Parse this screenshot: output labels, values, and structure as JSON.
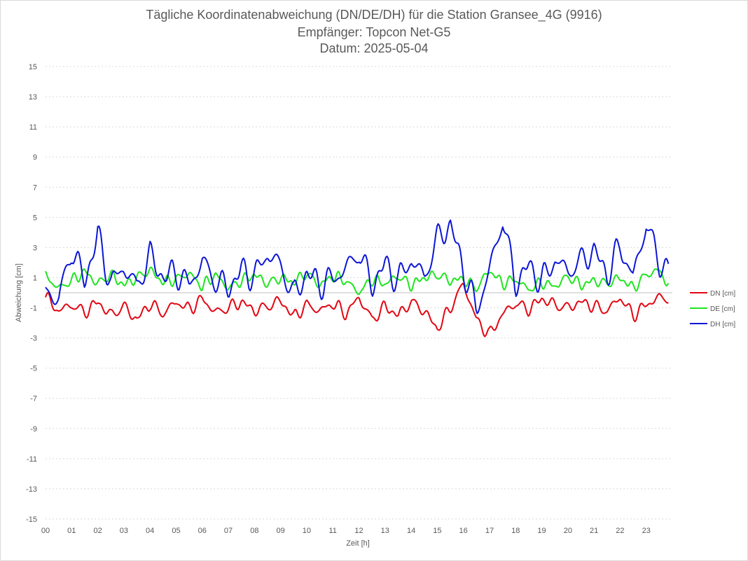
{
  "chart_data": {
    "type": "line",
    "title": "Tägliche Koordinatenabweichung (DN/DE/DH) für die Station Gransee_4G (9916)",
    "subtitle_1": "Empfänger: Topcon Net-G5",
    "subtitle_2": "Datum: 2025-05-04",
    "xlabel": "Zeit [h]",
    "ylabel": "Abweichung [cm]",
    "xlim": [
      0,
      24
    ],
    "ylim": [
      -15,
      15
    ],
    "x_ticks": [
      "00",
      "01",
      "02",
      "03",
      "04",
      "05",
      "06",
      "07",
      "08",
      "09",
      "10",
      "11",
      "12",
      "13",
      "14",
      "15",
      "16",
      "17",
      "18",
      "19",
      "20",
      "21",
      "22",
      "23"
    ],
    "y_ticks": [
      15,
      13,
      11,
      9,
      7,
      5,
      3,
      1,
      -1,
      -3,
      -5,
      -7,
      -9,
      -11,
      -13,
      -15
    ],
    "grid": true,
    "legend_position": "right",
    "x": [
      0.0,
      0.5,
      1.0,
      1.5,
      2.0,
      2.5,
      3.0,
      3.5,
      4.0,
      4.5,
      5.0,
      5.5,
      6.0,
      6.5,
      7.0,
      7.5,
      8.0,
      8.5,
      9.0,
      9.5,
      10.0,
      10.5,
      11.0,
      11.5,
      12.0,
      12.5,
      13.0,
      13.5,
      14.0,
      14.5,
      15.0,
      15.5,
      16.0,
      16.5,
      17.0,
      17.5,
      18.0,
      18.5,
      19.0,
      19.5,
      20.0,
      20.5,
      21.0,
      21.5,
      22.0,
      22.5,
      23.0,
      23.5,
      23.85
    ],
    "series": [
      {
        "name": "DN [cm]",
        "color": "#e30613",
        "values": [
          -0.3,
          -1.2,
          -0.8,
          -1.3,
          -0.6,
          -1.5,
          -0.9,
          -1.8,
          -0.7,
          -1.4,
          -0.6,
          -1.1,
          -0.4,
          -1.3,
          -1.0,
          -0.6,
          -1.2,
          -0.9,
          -0.5,
          -1.6,
          -0.8,
          -1.2,
          -0.7,
          -1.4,
          -0.3,
          -1.8,
          -0.9,
          -1.5,
          -0.6,
          -1.2,
          -2.4,
          -1.0,
          0.6,
          -1.8,
          -2.8,
          -1.4,
          -0.7,
          -1.1,
          -0.4,
          -0.8,
          -1.0,
          -0.6,
          -0.9,
          -1.2,
          -0.3,
          -1.5,
          -0.8,
          -0.3,
          -0.4
        ]
      },
      {
        "name": "DE [cm]",
        "color": "#1ee61e",
        "values": [
          1.1,
          0.3,
          0.8,
          1.4,
          0.6,
          1.2,
          0.5,
          1.0,
          1.5,
          0.7,
          0.9,
          1.3,
          0.4,
          1.2,
          0.3,
          0.8,
          1.2,
          0.6,
          1.0,
          0.7,
          1.3,
          0.5,
          1.1,
          0.8,
          0.0,
          0.9,
          0.6,
          1.1,
          0.5,
          1.0,
          1.2,
          0.8,
          0.9,
          0.3,
          1.5,
          0.6,
          0.9,
          0.2,
          0.7,
          0.4,
          1.1,
          0.5,
          0.8,
          0.6,
          1.0,
          0.3,
          1.2,
          1.5,
          0.5
        ]
      },
      {
        "name": "DH [cm]",
        "color": "#0b16d6",
        "values": [
          0.2,
          -0.5,
          2.9,
          0.8,
          3.8,
          0.6,
          1.7,
          0.4,
          2.5,
          1.0,
          1.4,
          0.5,
          2.1,
          0.8,
          0.3,
          1.5,
          1.1,
          2.6,
          1.8,
          -0.2,
          1.3,
          0.6,
          0.9,
          1.6,
          2.7,
          0.5,
          1.9,
          0.8,
          2.2,
          1.0,
          3.6,
          4.5,
          1.6,
          -1.2,
          1.5,
          4.9,
          0.6,
          1.8,
          0.7,
          2.2,
          1.4,
          2.1,
          2.8,
          1.2,
          3.1,
          1.0,
          4.6,
          2.0,
          1.6
        ]
      }
    ]
  }
}
